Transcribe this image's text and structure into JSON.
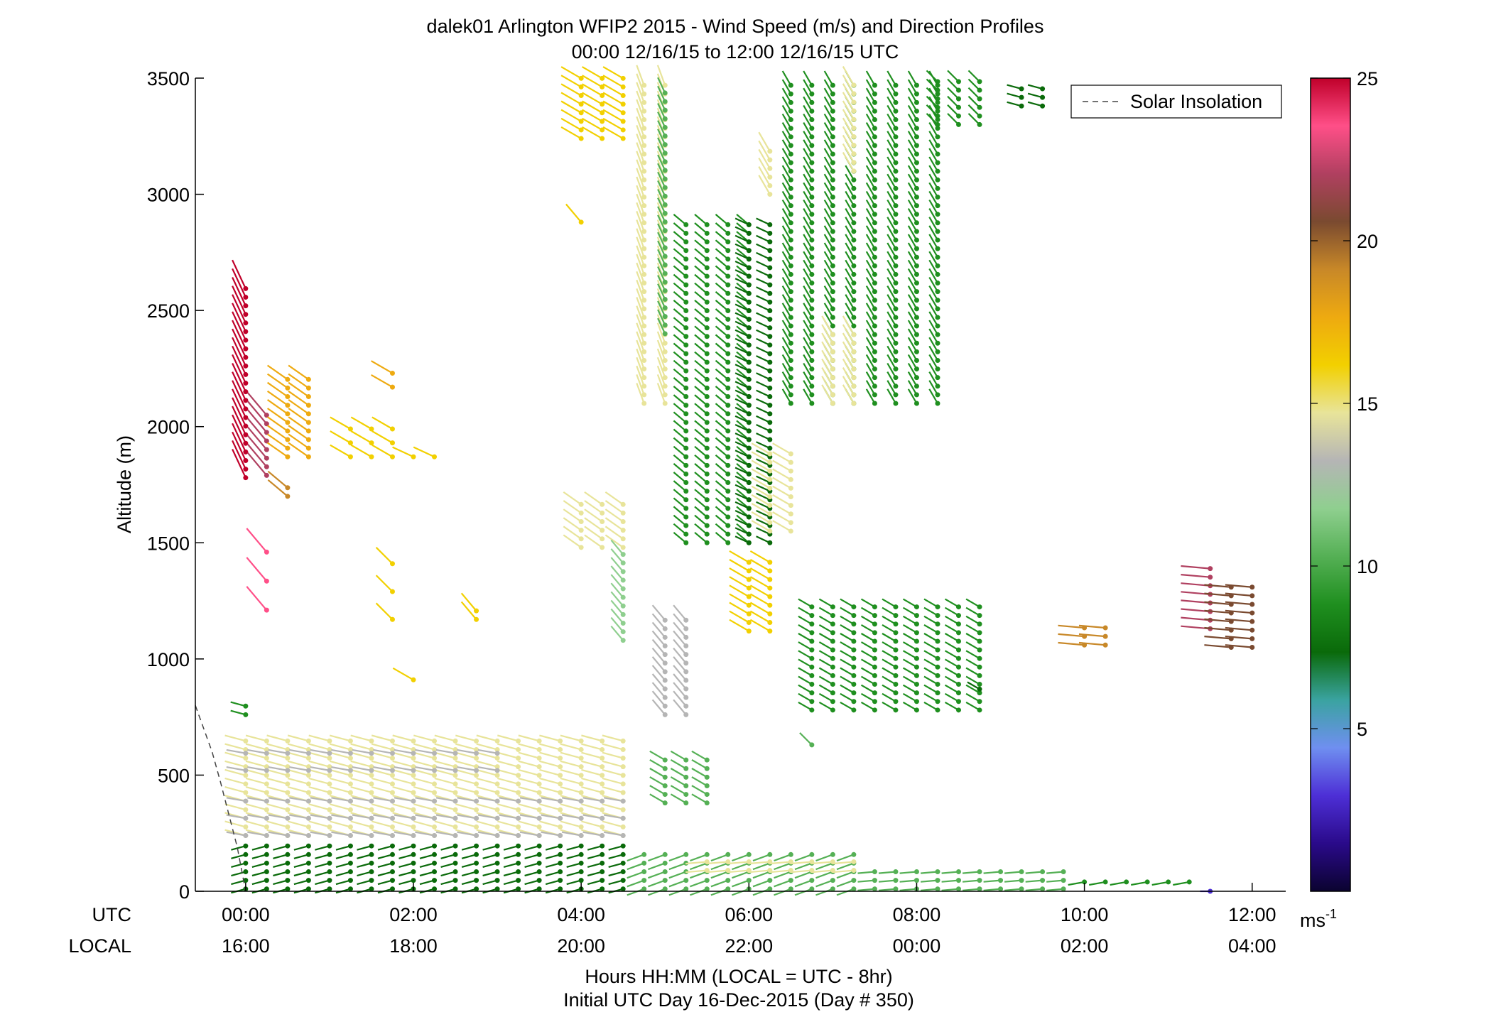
{
  "header": {
    "title_line1": "dalek01 Arlington WFIP2 2015 - Wind Speed (m/s) and Direction Profiles",
    "title_line2": "00:00 12/16/15 to 12:00 12/16/15  UTC"
  },
  "footer": {
    "xlabel_line1": "Hours HH:MM  (LOCAL = UTC - 8hr)",
    "xlabel_line2": "Initial UTC Day 16-Dec-2015 (Day # 350)",
    "row_utc": "UTC",
    "row_local": "LOCAL"
  },
  "legend": {
    "label": "Solar Insolation",
    "placement": "top-right"
  },
  "colorbar": {
    "unit_base": "ms",
    "unit_exp": "-1",
    "ticks": [
      5,
      10,
      15,
      20,
      25
    ],
    "range": [
      0,
      25
    ],
    "colors": [
      "#0b0330",
      "#2a0a8a",
      "#4d2fd6",
      "#6f8ff0",
      "#3aa3a0",
      "#0a6a0a",
      "#1f8f1f",
      "#55b055",
      "#8fcf8f",
      "#b5b5b5",
      "#e8e49a",
      "#f2d000",
      "#eeaa10",
      "#c88828",
      "#7a4a30",
      "#b04060",
      "#ff4f88",
      "#c0002a"
    ]
  },
  "chart_data": {
    "type": "wind_barb_profile",
    "title": "dalek01 Arlington WFIP2 2015 - Wind Speed (m/s) and Direction Profiles",
    "subtitle": "00:00 12/16/15 to 12:00 12/16/15  UTC",
    "xlabel": "Hours HH:MM  (LOCAL = UTC - 8hr)",
    "ylabel": "Altitude (m)",
    "xlim_hours": [
      -0.6,
      12.4
    ],
    "ylim": [
      0,
      3500
    ],
    "yticks": [
      0,
      500,
      1000,
      1500,
      2000,
      2500,
      3000,
      3500
    ],
    "xticks_utc": [
      "00:00",
      "02:00",
      "04:00",
      "06:00",
      "08:00",
      "10:00",
      "12:00"
    ],
    "xticks_local": [
      "16:00",
      "18:00",
      "20:00",
      "22:00",
      "00:00",
      "02:00",
      "04:00"
    ],
    "xticks_hours": [
      0,
      2,
      4,
      6,
      8,
      10,
      12
    ],
    "colorbar_label": "ms-1",
    "solar_insolation_curve": [
      [
        -0.6,
        800
      ],
      [
        -0.5,
        700
      ],
      [
        -0.4,
        600
      ],
      [
        -0.3,
        470
      ],
      [
        -0.2,
        330
      ],
      [
        -0.1,
        190
      ],
      [
        0.0,
        0
      ]
    ],
    "segments": [
      {
        "x0": 0.0,
        "x1": 0.0,
        "dx": 0.25,
        "y0": 1780,
        "y1": 2600,
        "dy": 37,
        "speed": 24.5,
        "dir": 335
      },
      {
        "x0": 0.25,
        "x1": 0.25,
        "dx": 0.25,
        "y0": 1790,
        "y1": 2050,
        "dy": 37,
        "speed": 22.5,
        "dir": 320
      },
      {
        "x0": 0.5,
        "x1": 0.75,
        "dx": 0.25,
        "y0": 1870,
        "y1": 2220,
        "dy": 37,
        "speed": 17.5,
        "dir": 305
      },
      {
        "x0": 0.5,
        "x1": 0.5,
        "dx": 0.25,
        "y0": 1700,
        "y1": 1740,
        "dy": 37,
        "speed": 18.5,
        "dir": 310
      },
      {
        "x0": 0.25,
        "x1": 0.25,
        "dx": 0.25,
        "y0": 1210,
        "y1": 1580,
        "dy": 125,
        "speed": 24,
        "dir": 320
      },
      {
        "x0": 1.25,
        "x1": 1.75,
        "dx": 0.25,
        "y0": 1870,
        "y1": 2010,
        "dy": 60,
        "speed": 16.5,
        "dir": 300
      },
      {
        "x0": 2.0,
        "x1": 2.25,
        "dx": 0.25,
        "y0": 1870,
        "y1": 1880,
        "dy": 37,
        "speed": 16,
        "dir": 295
      },
      {
        "x0": 1.75,
        "x1": 1.75,
        "dx": 0.25,
        "y0": 2170,
        "y1": 2230,
        "dy": 60,
        "speed": 17.5,
        "dir": 300
      },
      {
        "x0": 1.75,
        "x1": 1.75,
        "dx": 0.25,
        "y0": 1170,
        "y1": 1410,
        "dy": 120,
        "speed": 16,
        "dir": 315
      },
      {
        "x0": 2.75,
        "x1": 2.75,
        "dx": 0.25,
        "y0": 1170,
        "y1": 1240,
        "dy": 37,
        "speed": 16,
        "dir": 320
      },
      {
        "x0": 2.0,
        "x1": 2.0,
        "dx": 0.25,
        "y0": 910,
        "y1": 910,
        "dy": 37,
        "speed": 16.5,
        "dir": 300
      },
      {
        "x0": 4.0,
        "x1": 4.5,
        "dx": 0.25,
        "y0": 3240,
        "y1": 3500,
        "dy": 37,
        "speed": 16,
        "dir": 300
      },
      {
        "x0": 4.0,
        "x1": 4.0,
        "dx": 0.25,
        "y0": 2880,
        "y1": 2880,
        "dy": 37,
        "speed": 16.5,
        "dir": 320
      },
      {
        "x0": 4.0,
        "x1": 4.5,
        "dx": 0.25,
        "y0": 1480,
        "y1": 1700,
        "dy": 37,
        "speed": 14.5,
        "dir": 305
      },
      {
        "x0": 4.5,
        "x1": 4.5,
        "dx": 0.25,
        "y0": 1080,
        "y1": 1480,
        "dy": 37,
        "speed": 11.5,
        "dir": 320
      },
      {
        "x0": 5.0,
        "x1": 5.25,
        "dx": 0.25,
        "y0": 760,
        "y1": 1200,
        "dy": 37,
        "speed": 12.5,
        "dir": 320
      },
      {
        "x0": 4.75,
        "x1": 5.0,
        "dx": 0.25,
        "y0": 2100,
        "y1": 3500,
        "dy": 37,
        "speed": 14.5,
        "dir": 340
      },
      {
        "x0": 5.0,
        "x1": 5.0,
        "dx": 0.25,
        "y0": 2400,
        "y1": 3450,
        "dy": 37,
        "speed": 10,
        "dir": 335
      },
      {
        "x0": 5.25,
        "x1": 6.0,
        "dx": 0.25,
        "y0": 1500,
        "y1": 2900,
        "dy": 37,
        "speed": 9,
        "dir": 310
      },
      {
        "x0": 6.0,
        "x1": 6.25,
        "dx": 0.25,
        "y0": 1500,
        "y1": 2900,
        "dy": 37,
        "speed": 8,
        "dir": 295
      },
      {
        "x0": 6.25,
        "x1": 6.5,
        "dx": 0.25,
        "y0": 1550,
        "y1": 1900,
        "dy": 37,
        "speed": 14,
        "dir": 300
      },
      {
        "x0": 6.0,
        "x1": 6.25,
        "dx": 0.25,
        "y0": 1120,
        "y1": 1420,
        "dy": 37,
        "speed": 15.5,
        "dir": 300
      },
      {
        "x0": 6.5,
        "x1": 8.25,
        "dx": 0.25,
        "y0": 2100,
        "y1": 3500,
        "dy": 37,
        "speed": 9.5,
        "dir": 330
      },
      {
        "x0": 7.0,
        "x1": 7.25,
        "dx": 0.25,
        "y0": 2100,
        "y1": 2400,
        "dy": 37,
        "speed": 14.5,
        "dir": 330
      },
      {
        "x0": 7.25,
        "x1": 7.25,
        "dx": 0.25,
        "y0": 3100,
        "y1": 3500,
        "dy": 37,
        "speed": 14.5,
        "dir": 330
      },
      {
        "x0": 6.25,
        "x1": 6.25,
        "dx": 0.25,
        "y0": 3000,
        "y1": 3200,
        "dy": 37,
        "speed": 15,
        "dir": 330
      },
      {
        "x0": 8.25,
        "x1": 8.75,
        "dx": 0.25,
        "y0": 3300,
        "y1": 3500,
        "dy": 37,
        "speed": 8.5,
        "dir": 315
      },
      {
        "x0": 9.25,
        "x1": 9.5,
        "dx": 0.25,
        "y0": 3380,
        "y1": 3480,
        "dy": 37,
        "speed": 8,
        "dir": 285
      },
      {
        "x0": 6.75,
        "x1": 8.75,
        "dx": 0.25,
        "y0": 780,
        "y1": 1230,
        "dy": 37,
        "speed": 8.5,
        "dir": 300
      },
      {
        "x0": 8.75,
        "x1": 8.75,
        "dx": 0.25,
        "y0": 870,
        "y1": 870,
        "dy": 37,
        "speed": 7,
        "dir": 300
      },
      {
        "x0": 6.75,
        "x1": 6.75,
        "dx": 0.25,
        "y0": 630,
        "y1": 630,
        "dy": 37,
        "speed": 10,
        "dir": 315
      },
      {
        "x0": 5.0,
        "x1": 5.5,
        "dx": 0.25,
        "y0": 380,
        "y1": 600,
        "dy": 37,
        "speed": 10.5,
        "dir": 300
      },
      {
        "x0": 10.0,
        "x1": 10.25,
        "dx": 0.25,
        "y0": 1060,
        "y1": 1170,
        "dy": 37,
        "speed": 19.5,
        "dir": 275
      },
      {
        "x0": 11.5,
        "x1": 11.5,
        "dx": 0.25,
        "y0": 1130,
        "y1": 1390,
        "dy": 37,
        "speed": 22.5,
        "dir": 275
      },
      {
        "x0": 11.75,
        "x1": 12.0,
        "dx": 0.25,
        "y0": 1050,
        "y1": 1340,
        "dy": 37,
        "speed": 20,
        "dir": 275
      },
      {
        "x0": 0.0,
        "x1": 4.5,
        "dx": 0.25,
        "y0": 240,
        "y1": 660,
        "dy": 37,
        "speed": 14.5,
        "dir": 285
      },
      {
        "x0": 0.0,
        "x1": 4.5,
        "dx": 0.25,
        "y0": 240,
        "y1": 420,
        "dy": 74,
        "speed": 12.5,
        "dir": 280
      },
      {
        "x0": 0.0,
        "x1": 3.0,
        "dx": 0.25,
        "y0": 520,
        "y1": 600,
        "dy": 74,
        "speed": 12.5,
        "dir": 280
      },
      {
        "x0": 0.0,
        "x1": 0.0,
        "dx": 0.25,
        "y0": 760,
        "y1": 800,
        "dy": 37,
        "speed": 8.5,
        "dir": 285
      },
      {
        "x0": 0.0,
        "x1": 4.5,
        "dx": 0.25,
        "y0": 10,
        "y1": 210,
        "dy": 37,
        "speed": 8,
        "dir": 255
      },
      {
        "x0": 4.75,
        "x1": 7.25,
        "dx": 0.25,
        "y0": 10,
        "y1": 160,
        "dy": 37,
        "speed": 11,
        "dir": 250
      },
      {
        "x0": 5.5,
        "x1": 7.25,
        "dx": 0.25,
        "y0": 90,
        "y1": 160,
        "dy": 37,
        "speed": 14.5,
        "dir": 265
      },
      {
        "x0": 7.5,
        "x1": 9.75,
        "dx": 0.25,
        "y0": 10,
        "y1": 90,
        "dy": 37,
        "speed": 10,
        "dir": 265
      },
      {
        "x0": 10.0,
        "x1": 11.25,
        "dx": 0.25,
        "y0": 40,
        "y1": 60,
        "dy": 37,
        "speed": 9.5,
        "dir": 260
      },
      {
        "x0": 11.5,
        "x1": 11.5,
        "dx": 0.25,
        "y0": 0,
        "y1": 0,
        "dy": 37,
        "speed": 3,
        "dir": 270
      }
    ]
  }
}
